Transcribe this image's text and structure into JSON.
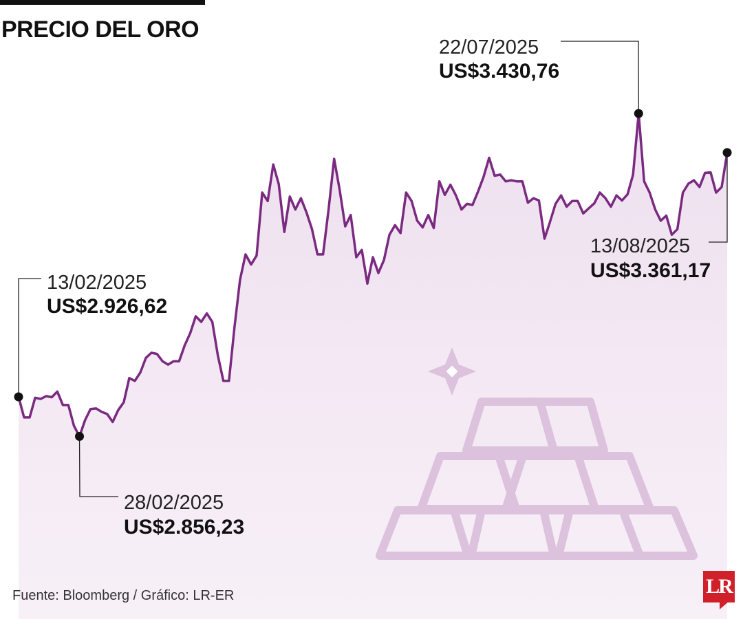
{
  "header": {
    "title": "PRECIO DEL ORO"
  },
  "footer": {
    "source": "Fuente: Bloomberg / Gráfico: LR-ER"
  },
  "brand": {
    "logo_text": "LR",
    "logo_color": "#d0202a"
  },
  "colors": {
    "line": "#7a2a80",
    "area_top": "#efe0ef",
    "area_bottom": "#f7f0f7",
    "gold_icon": "#dcc2dc"
  },
  "chart_data": {
    "type": "area",
    "title": "PRECIO DEL ORO",
    "unit": "US$",
    "x_range": [
      "13/02/2025",
      "13/08/2025"
    ],
    "y_range": [
      2800,
      3480
    ],
    "values": [
      2926.62,
      2890,
      2890,
      2925,
      2923,
      2928,
      2926,
      2936,
      2912,
      2912,
      2875,
      2856.23,
      2885,
      2905,
      2906,
      2900,
      2896,
      2882,
      2903,
      2917,
      2960,
      2955,
      2970,
      2996,
      3005,
      3003,
      2990,
      2984,
      2990,
      2990,
      3018,
      3040,
      3070,
      3060,
      3075,
      3060,
      3000,
      2955,
      2955,
      3050,
      3135,
      3180,
      3162,
      3178,
      3290,
      3275,
      3340,
      3305,
      3220,
      3283,
      3260,
      3280,
      3255,
      3225,
      3180,
      3180,
      3260,
      3350,
      3295,
      3230,
      3250,
      3175,
      3188,
      3128,
      3175,
      3147,
      3170,
      3215,
      3232,
      3218,
      3290,
      3275,
      3240,
      3228,
      3250,
      3227,
      3310,
      3286,
      3304,
      3285,
      3260,
      3270,
      3268,
      3292,
      3318,
      3352,
      3320,
      3322,
      3310,
      3312,
      3310,
      3310,
      3272,
      3280,
      3276,
      3208,
      3238,
      3270,
      3285,
      3265,
      3275,
      3275,
      3253,
      3262,
      3271,
      3290,
      3280,
      3265,
      3285,
      3276,
      3287,
      3322,
      3430.76,
      3310,
      3290,
      3260,
      3240,
      3249,
      3215,
      3225,
      3290,
      3306,
      3312,
      3300,
      3325,
      3326,
      3290,
      3300,
      3361.17
    ],
    "annotations": [
      {
        "date": "13/02/2025",
        "value": "US$2.926,62"
      },
      {
        "date": "28/02/2025",
        "value": "US$2.856,23"
      },
      {
        "date": "22/07/2025",
        "value": "US$3.430,76"
      },
      {
        "date": "13/08/2025",
        "value": "US$3.361,17"
      }
    ],
    "grid": false,
    "legend": "none"
  }
}
